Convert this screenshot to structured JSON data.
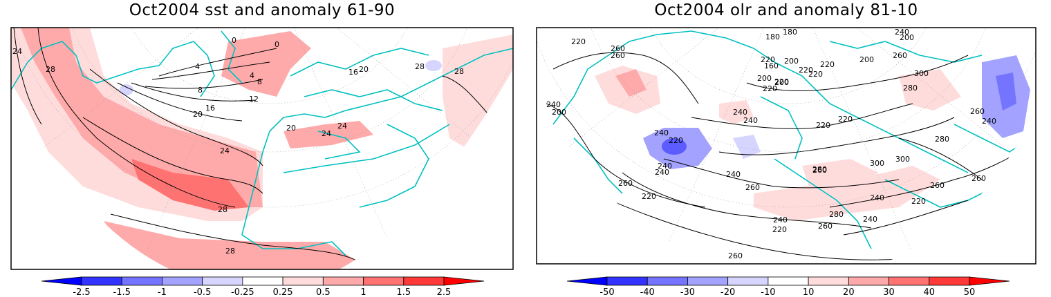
{
  "panels": [
    {
      "title": "Oct2004 sst and anomaly 61-90",
      "contour_labels": [
        "24",
        "28",
        "0",
        "0",
        "4",
        "4",
        "8",
        "8",
        "12",
        "16",
        "20",
        "20",
        "24",
        "24",
        "24",
        "28",
        "28",
        "28",
        "16",
        "20",
        "28"
      ],
      "colorbar": {
        "levels": [
          "-2.5",
          "-1.5",
          "-1",
          "-0.5",
          "-0.25",
          "0.25",
          "0.5",
          "1",
          "1.5",
          "2.5"
        ],
        "colors": [
          "#0000ff",
          "#3333ff",
          "#7474ff",
          "#a3a3ff",
          "#d5d5ff",
          "#ffffff",
          "#ffdcdc",
          "#ffaaaa",
          "#ff7272",
          "#ff3838",
          "#ff0000"
        ]
      }
    },
    {
      "title": "Oct2004 olr and anomaly 81-10",
      "contour_labels": [
        "180",
        "180",
        "240",
        "200",
        "260",
        "220",
        "260",
        "220",
        "200",
        "160",
        "200",
        "200",
        "220",
        "220",
        "220",
        "220",
        "200",
        "220",
        "280",
        "300",
        "260",
        "240",
        "200",
        "220",
        "240",
        "240",
        "240",
        "220",
        "240",
        "220",
        "240",
        "260",
        "240",
        "260",
        "260",
        "280",
        "300",
        "300",
        "280",
        "260",
        "260",
        "240",
        "260",
        "220",
        "220",
        "240",
        "240",
        "280",
        "260",
        "220",
        "260",
        "240"
      ],
      "colorbar": {
        "levels": [
          "-50",
          "-40",
          "-30",
          "-20",
          "-10",
          "10",
          "20",
          "30",
          "40",
          "50"
        ],
        "colors": [
          "#0000ff",
          "#3333ff",
          "#7474ff",
          "#a3a3ff",
          "#d5d5ff",
          "#ffffff",
          "#ffdcdc",
          "#ffaaaa",
          "#ff7272",
          "#ff3838",
          "#ff0000"
        ]
      }
    }
  ]
}
